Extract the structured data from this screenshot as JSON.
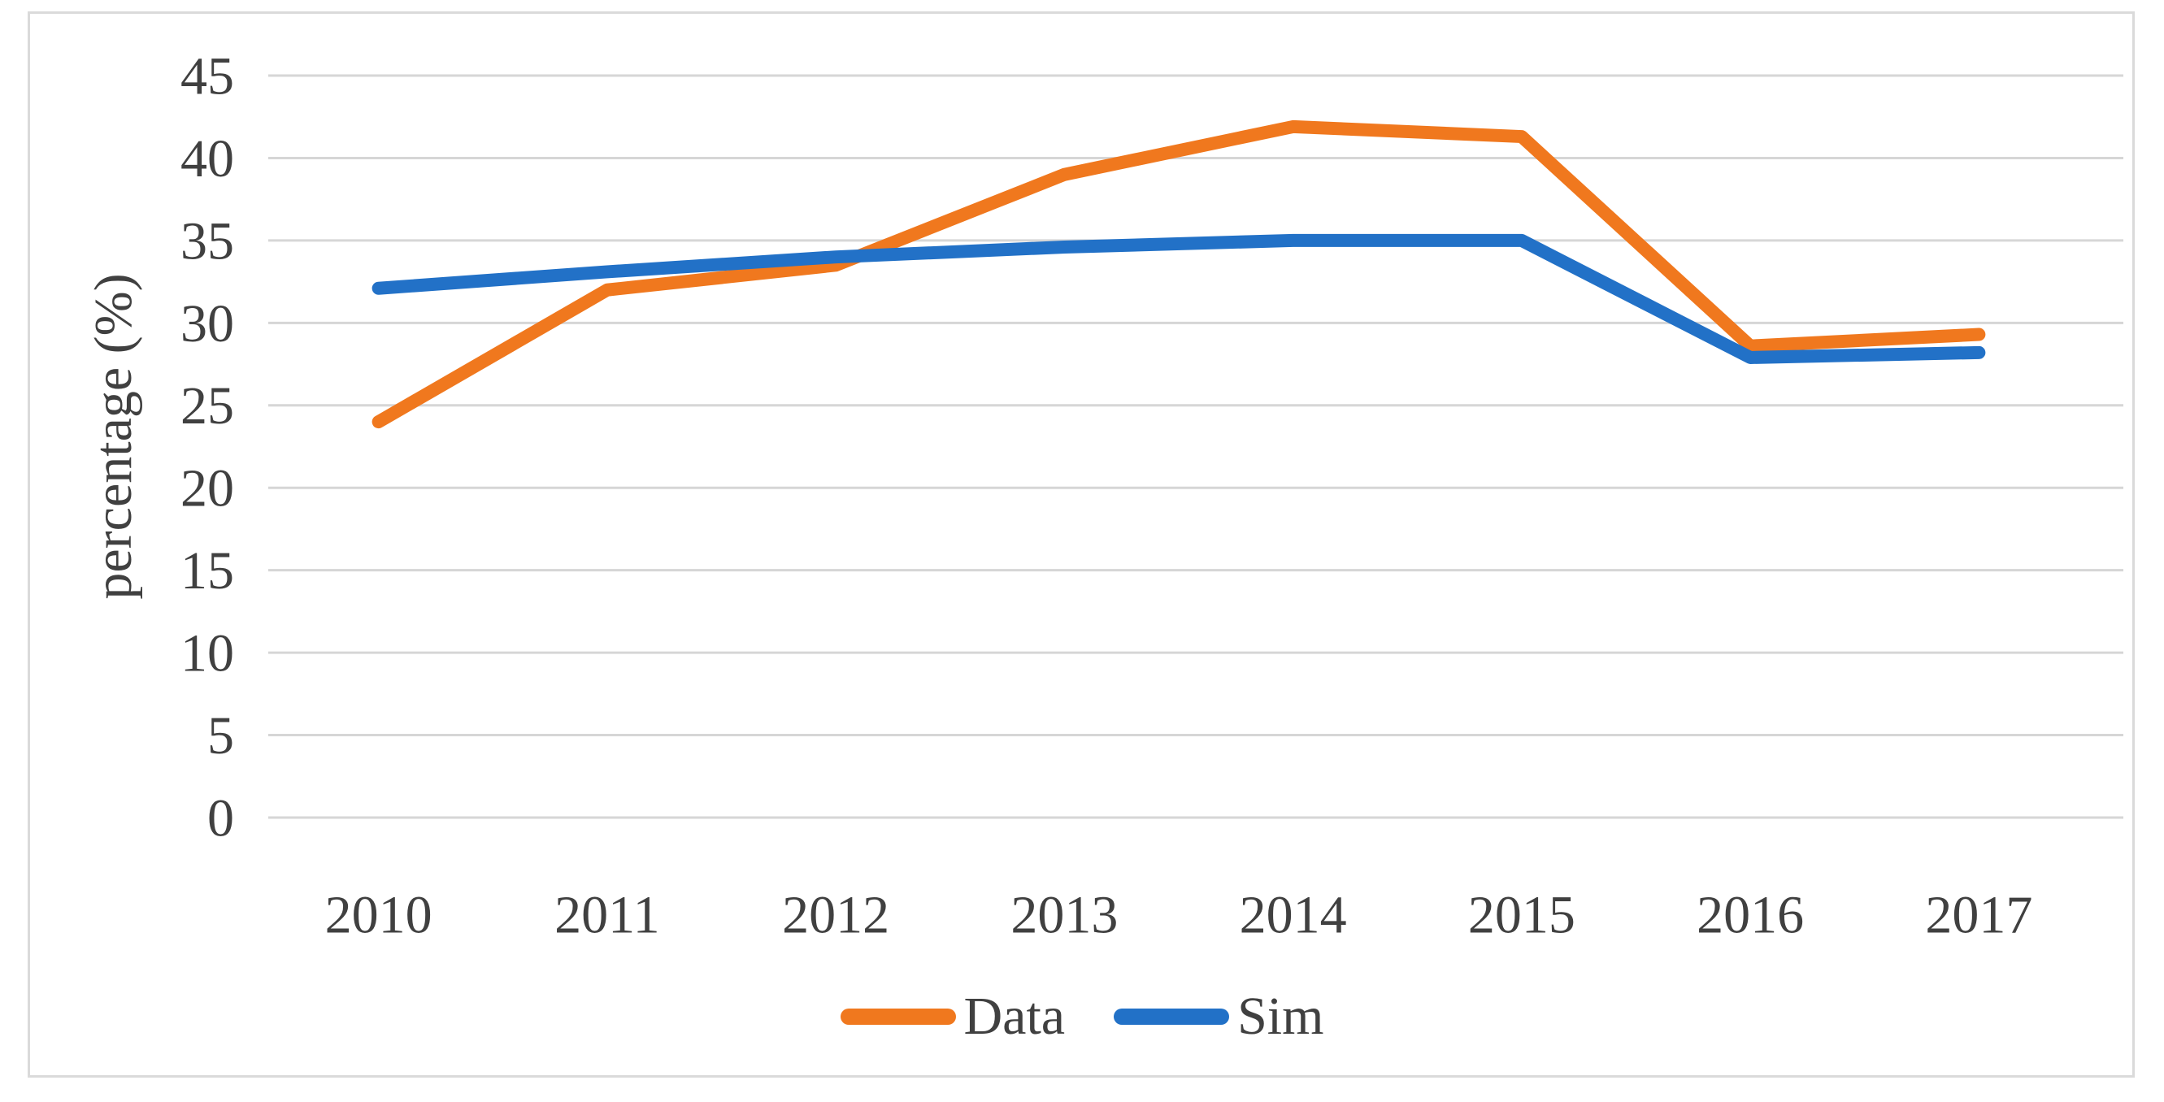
{
  "figure": {
    "background": "#FFFFFF",
    "border_color": "#DADADA"
  },
  "chart_data": {
    "type": "line",
    "title": "",
    "xlabel": "",
    "ylabel": "percentage (%)",
    "categories": [
      "2010",
      "2011",
      "2012",
      "2013",
      "2014",
      "2015",
      "2016",
      "2017"
    ],
    "series": [
      {
        "name": "Data",
        "color": "#F0781E",
        "values": [
          24.0,
          32.0,
          33.5,
          39.0,
          41.9,
          41.3,
          28.6,
          29.3
        ]
      },
      {
        "name": "Sim",
        "color": "#2271C7",
        "values": [
          32.1,
          33.1,
          34.0,
          34.6,
          35.0,
          35.0,
          27.9,
          28.2
        ]
      }
    ],
    "ylim": [
      0,
      45
    ],
    "yticks": [
      45,
      40,
      35,
      30,
      25,
      20,
      15,
      10,
      5,
      0
    ],
    "grid": "horizontal",
    "gridline_color": "#D6D6D6",
    "axis_text_color": "#404040",
    "line_width": 16,
    "legend_position": "bottom-center"
  }
}
